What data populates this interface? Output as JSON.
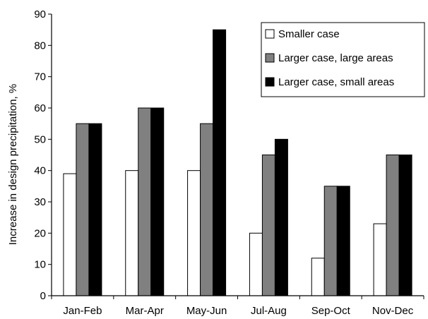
{
  "chart_data": {
    "type": "bar",
    "title": "",
    "xlabel": "",
    "ylabel": "Increase in design precipitation, %",
    "ylim": [
      0,
      90
    ],
    "yticks": [
      0,
      10,
      20,
      30,
      40,
      50,
      60,
      70,
      80,
      90
    ],
    "categories": [
      "Jan-Feb",
      "Mar-Apr",
      "May-Jun",
      "Jul-Aug",
      "Sep-Oct",
      "Nov-Dec"
    ],
    "series": [
      {
        "name": "Smaller case",
        "values": [
          39,
          40,
          40,
          20,
          12,
          23
        ],
        "color": "#ffffff"
      },
      {
        "name": "Larger case, large areas",
        "values": [
          55,
          60,
          55,
          45,
          35,
          45
        ],
        "color": "#808080"
      },
      {
        "name": "Larger case, small areas",
        "values": [
          55,
          60,
          85,
          50,
          35,
          45
        ],
        "color": "#000000"
      }
    ],
    "legend": "top-right",
    "grid": false
  }
}
